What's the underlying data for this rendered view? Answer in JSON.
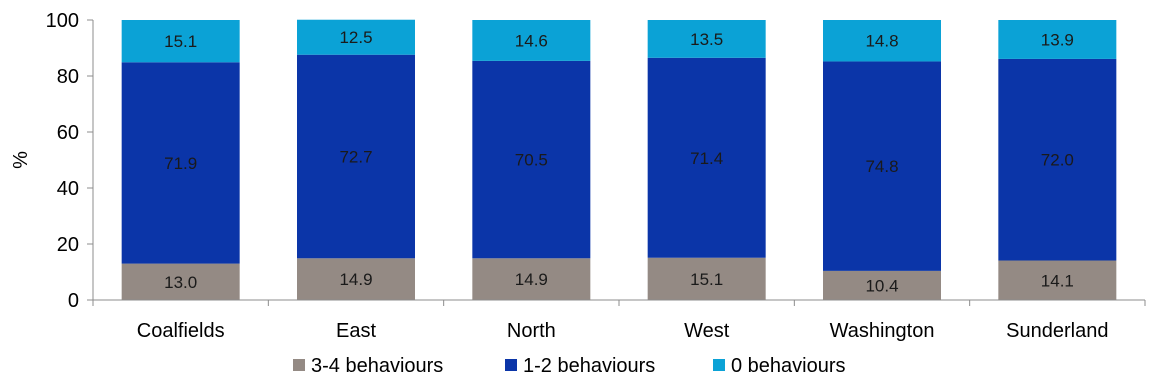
{
  "chart_data": {
    "type": "bar",
    "stacked": true,
    "categories": [
      "Coalfields",
      "East",
      "North",
      "West",
      "Washington",
      "Sunderland"
    ],
    "series": [
      {
        "name": "3-4 behaviours",
        "color": "#948A84",
        "values": [
          13.0,
          14.9,
          14.9,
          15.1,
          10.4,
          14.1
        ],
        "labels": [
          "13.0",
          "14.9",
          "14.9",
          "15.1",
          "10.4",
          "14.1"
        ]
      },
      {
        "name": "1-2 behaviours",
        "color": "#0B35A8",
        "values": [
          71.9,
          72.7,
          70.5,
          71.4,
          74.8,
          72.0
        ],
        "labels": [
          "71.9",
          "72.7",
          "70.5",
          "71.4",
          "74.8",
          "72.0"
        ]
      },
      {
        "name": "0 behaviours",
        "color": "#0BA2D6",
        "values": [
          15.1,
          12.5,
          14.6,
          13.5,
          14.8,
          13.9
        ],
        "labels": [
          "15.1",
          "12.5",
          "14.6",
          "13.5",
          "14.8",
          "13.9"
        ]
      }
    ],
    "ylabel": "%",
    "xlabel": "",
    "ylim": [
      0,
      100
    ],
    "yticks": [
      0,
      20,
      40,
      60,
      80,
      100
    ],
    "ytick_labels": [
      "0",
      "20",
      "40",
      "60",
      "80",
      "100"
    ],
    "grid": false,
    "legend_position": "bottom"
  }
}
